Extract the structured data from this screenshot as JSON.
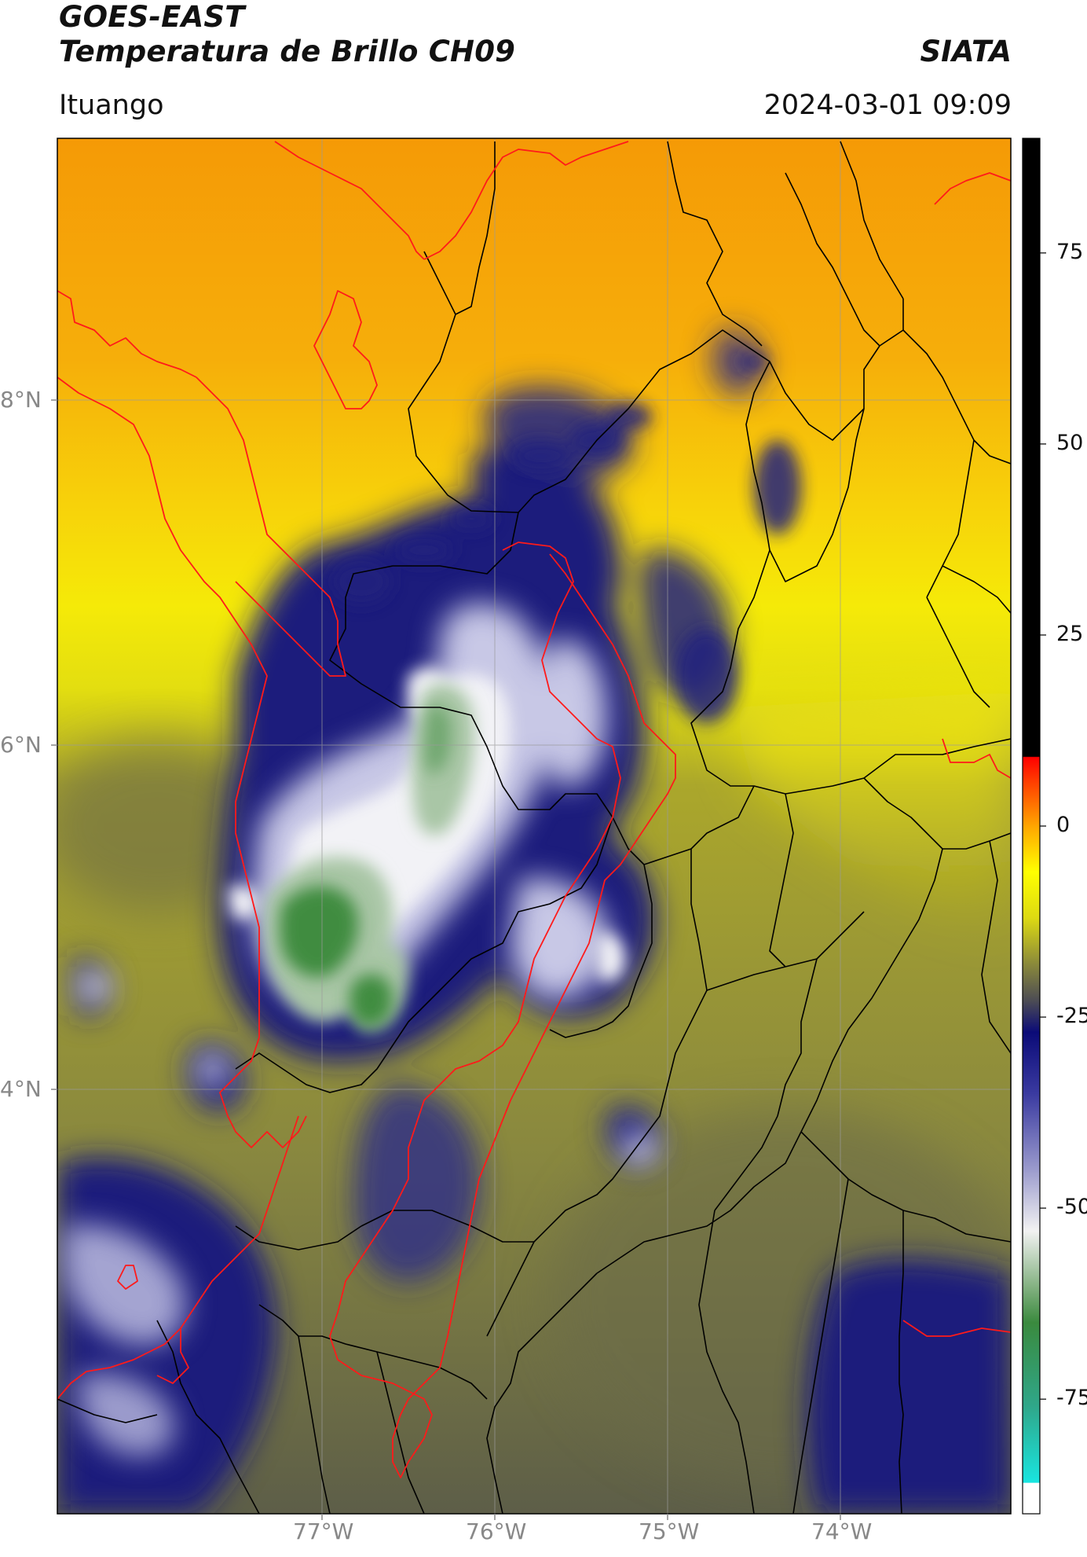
{
  "header": {
    "satellite": "GOES-EAST",
    "product": "Temperatura de Brillo CH09",
    "org": "SIATA",
    "region": "Ituango",
    "datetime": "2024-03-01 09:09"
  },
  "map": {
    "lat_labels": [
      "8°N",
      "6°N",
      "4°N"
    ],
    "lon_labels": [
      "77°W",
      "76°W",
      "75°W",
      "74°W"
    ],
    "colors": {
      "warm_orange": "#f6a20a",
      "yellow": "#f5ea08",
      "olive": "#b3b027",
      "dark_olive": "#5d5e48",
      "navy": "#1a1a7a",
      "white_cloud": "#f1f1f5",
      "green_core": "#3d8a3c",
      "country_border": "#ff0000",
      "dept_border": "#000000"
    }
  },
  "colorbar": {
    "ticks": [
      "75",
      "50",
      "25",
      "0",
      "-25",
      "-50",
      "-75"
    ],
    "tick_values": [
      75,
      50,
      25,
      0,
      -25,
      -50,
      -75
    ],
    "range": [
      -90,
      90
    ],
    "stops": [
      {
        "v": -90,
        "c": "#ffffff"
      },
      {
        "v": -86,
        "c": "#ffffff"
      },
      {
        "v": -85.9,
        "c": "#19e5e0"
      },
      {
        "v": -76,
        "c": "#2fa78a"
      },
      {
        "v": -65,
        "c": "#3a8a3e"
      },
      {
        "v": -60,
        "c": "#88b486"
      },
      {
        "v": -53,
        "c": "#f2f2f2"
      },
      {
        "v": -45,
        "c": "#9b9bcd"
      },
      {
        "v": -35,
        "c": "#3a3aa0"
      },
      {
        "v": -27,
        "c": "#0b0b78"
      },
      {
        "v": -23,
        "c": "#4a4a55"
      },
      {
        "v": -18,
        "c": "#8b8a3a"
      },
      {
        "v": -12,
        "c": "#ddda12"
      },
      {
        "v": -6,
        "c": "#ffff00"
      },
      {
        "v": 0,
        "c": "#ffa500"
      },
      {
        "v": 6,
        "c": "#ff3a00"
      },
      {
        "v": 9,
        "c": "#ff0000"
      },
      {
        "v": 9.1,
        "c": "#000000"
      },
      {
        "v": 90,
        "c": "#000000"
      }
    ]
  }
}
